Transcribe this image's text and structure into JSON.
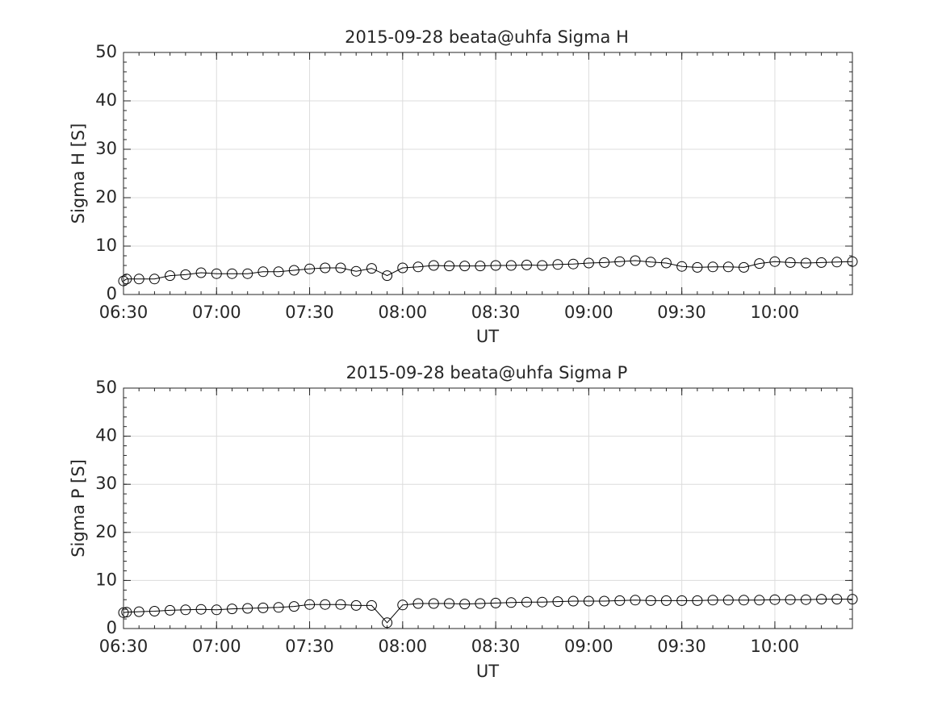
{
  "chart_data": [
    {
      "type": "line",
      "title": "2015-09-28  beata@uhfa Sigma H",
      "xlabel": "UT",
      "ylabel": "Sigma H [S]",
      "ylim": [
        0,
        50
      ],
      "yticks": [
        "0",
        "10",
        "20",
        "30",
        "40",
        "50"
      ],
      "xlim": [
        "06:30",
        "10:25"
      ],
      "xticks": [
        "06:30",
        "07:00",
        "07:30",
        "08:00",
        "08:30",
        "09:00",
        "09:30",
        "10:00"
      ],
      "grid": true,
      "marker": "open-circle",
      "line_color": "#000000",
      "series": [
        {
          "x": [
            "06:30",
            "06:31",
            "06:35",
            "06:40",
            "06:45",
            "06:50",
            "06:55",
            "07:00",
            "07:05",
            "07:10",
            "07:15",
            "07:20",
            "07:25",
            "07:30",
            "07:35",
            "07:40",
            "07:45",
            "07:50",
            "07:55",
            "08:00",
            "08:05",
            "08:10",
            "08:15",
            "08:20",
            "08:25",
            "08:30",
            "08:35",
            "08:40",
            "08:45",
            "08:50",
            "08:55",
            "09:00",
            "09:05",
            "09:10",
            "09:15",
            "09:20",
            "09:25",
            "09:30",
            "09:35",
            "09:40",
            "09:45",
            "09:50",
            "09:55",
            "10:00",
            "10:05",
            "10:10",
            "10:15",
            "10:20",
            "10:25"
          ],
          "values": [
            2.8,
            3.2,
            3.2,
            3.2,
            3.9,
            4.1,
            4.5,
            4.3,
            4.3,
            4.3,
            4.7,
            4.7,
            5.0,
            5.3,
            5.5,
            5.5,
            4.8,
            5.4,
            3.9,
            5.5,
            5.7,
            6.0,
            5.9,
            5.9,
            5.9,
            6.0,
            6.0,
            6.1,
            6.0,
            6.2,
            6.3,
            6.5,
            6.6,
            6.8,
            7.0,
            6.7,
            6.5,
            5.8,
            5.6,
            5.7,
            5.7,
            5.6,
            6.4,
            6.8,
            6.6,
            6.5,
            6.6,
            6.7,
            6.8
          ]
        }
      ]
    },
    {
      "type": "line",
      "title": "2015-09-28  beata@uhfa Sigma P",
      "xlabel": "UT",
      "ylabel": "Sigma P [S]",
      "ylim": [
        0,
        50
      ],
      "yticks": [
        "0",
        "10",
        "20",
        "30",
        "40",
        "50"
      ],
      "xlim": [
        "06:30",
        "10:25"
      ],
      "xticks": [
        "06:30",
        "07:00",
        "07:30",
        "08:00",
        "08:30",
        "09:00",
        "09:30",
        "10:00"
      ],
      "grid": true,
      "marker": "open-circle",
      "line_color": "#000000",
      "series": [
        {
          "x": [
            "06:30",
            "06:31",
            "06:35",
            "06:40",
            "06:45",
            "06:50",
            "06:55",
            "07:00",
            "07:05",
            "07:10",
            "07:15",
            "07:20",
            "07:25",
            "07:30",
            "07:35",
            "07:40",
            "07:45",
            "07:50",
            "07:55",
            "08:00",
            "08:05",
            "08:10",
            "08:15",
            "08:20",
            "08:25",
            "08:30",
            "08:35",
            "08:40",
            "08:45",
            "08:50",
            "08:55",
            "09:00",
            "09:05",
            "09:10",
            "09:15",
            "09:20",
            "09:25",
            "09:30",
            "09:35",
            "09:40",
            "09:45",
            "09:50",
            "09:55",
            "10:00",
            "10:05",
            "10:10",
            "10:15",
            "10:20",
            "10:25"
          ],
          "values": [
            3.3,
            3.4,
            3.5,
            3.6,
            3.8,
            3.9,
            4.0,
            3.9,
            4.1,
            4.2,
            4.3,
            4.4,
            4.6,
            5.0,
            5.0,
            5.0,
            4.8,
            4.8,
            1.2,
            4.9,
            5.2,
            5.2,
            5.2,
            5.1,
            5.2,
            5.3,
            5.4,
            5.5,
            5.5,
            5.6,
            5.7,
            5.7,
            5.7,
            5.8,
            5.9,
            5.8,
            5.8,
            5.8,
            5.8,
            5.9,
            5.9,
            5.9,
            5.9,
            6.0,
            6.0,
            6.0,
            6.1,
            6.1,
            6.1
          ]
        }
      ]
    }
  ]
}
